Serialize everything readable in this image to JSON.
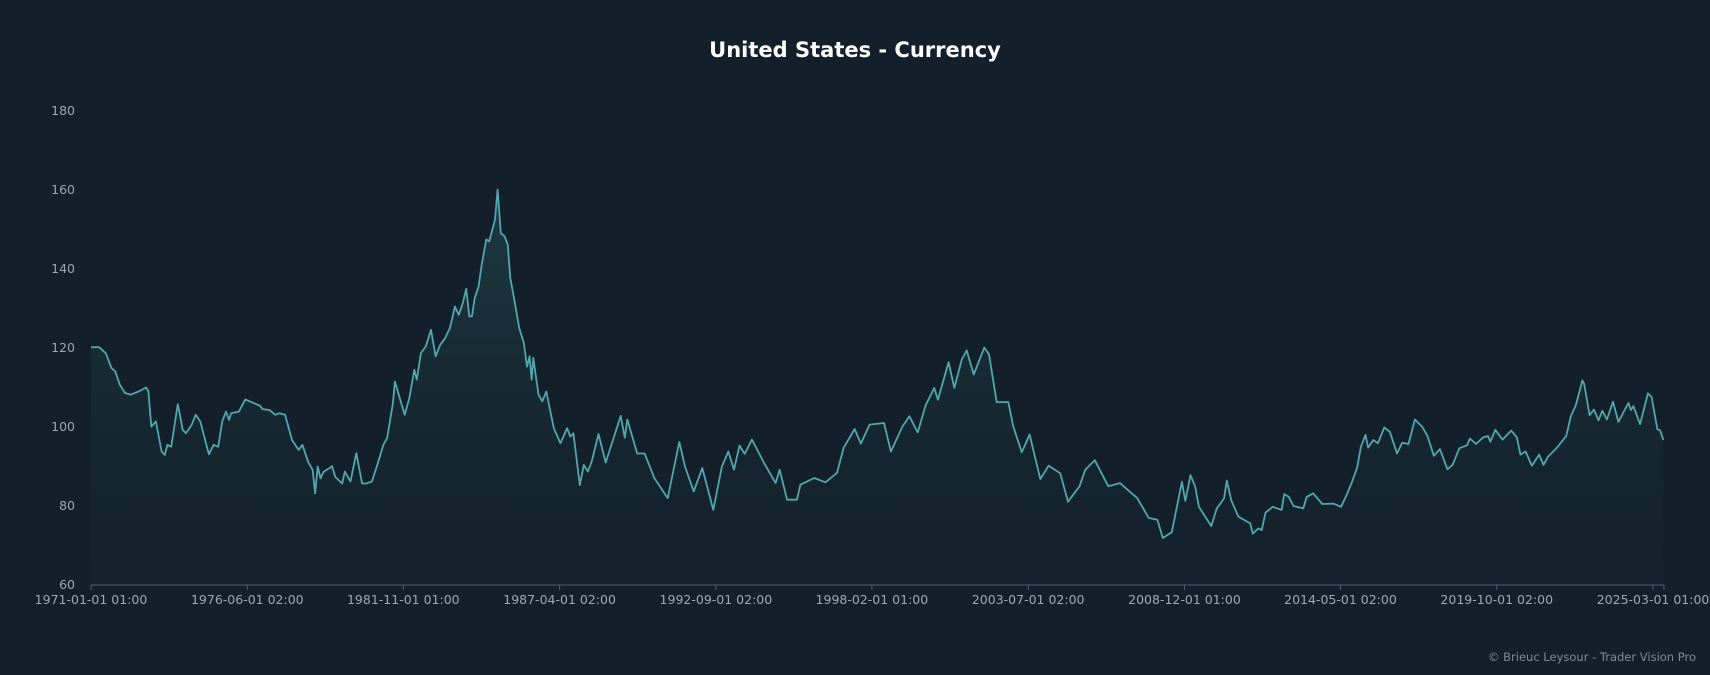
{
  "chart_data": {
    "type": "area",
    "title": "United States - Currency",
    "xlabel": "",
    "ylabel": "",
    "ylim": [
      60,
      180
    ],
    "xlim": [
      1971.0,
      2025.55
    ],
    "grid": false,
    "legend": "none",
    "line_color": "#52a7ad",
    "background": "#13202b",
    "yticks": [
      60,
      80,
      100,
      120,
      140,
      160,
      180
    ],
    "xticks": [
      {
        "x": 1971.0,
        "label": "1971-01-01 01:00"
      },
      {
        "x": 1976.42,
        "label": "1976-06-01 02:00"
      },
      {
        "x": 1981.83,
        "label": "1981-11-01 01:00"
      },
      {
        "x": 1987.25,
        "label": "1987-04-01 02:00"
      },
      {
        "x": 1992.67,
        "label": "1992-09-01 02:00"
      },
      {
        "x": 1998.08,
        "label": "1998-02-01 01:00"
      },
      {
        "x": 2003.5,
        "label": "2003-07-01 02:00"
      },
      {
        "x": 2008.92,
        "label": "2008-12-01 01:00"
      },
      {
        "x": 2014.33,
        "label": "2014-05-01 02:00"
      },
      {
        "x": 2019.75,
        "label": "2019-10-01 02:00"
      },
      {
        "x": 2025.17,
        "label": "2025-03-01 01:00"
      }
    ],
    "series": [
      {
        "name": "United States - Currency",
        "points": [
          [
            1971.0,
            120.2
          ],
          [
            1971.28,
            120.2
          ],
          [
            1971.51,
            118.7
          ],
          [
            1971.71,
            114.9
          ],
          [
            1971.84,
            114.1
          ],
          [
            1972.0,
            110.7
          ],
          [
            1972.18,
            108.6
          ],
          [
            1972.38,
            108.2
          ],
          [
            1972.65,
            109
          ],
          [
            1972.91,
            110
          ],
          [
            1972.99,
            109
          ],
          [
            1973.09,
            100.1
          ],
          [
            1973.25,
            101.4
          ],
          [
            1973.45,
            93.8
          ],
          [
            1973.56,
            92.9
          ],
          [
            1973.65,
            95.5
          ],
          [
            1973.78,
            95
          ],
          [
            1974.01,
            105.8
          ],
          [
            1974.18,
            99.3
          ],
          [
            1974.29,
            98.4
          ],
          [
            1974.49,
            100.5
          ],
          [
            1974.63,
            103.1
          ],
          [
            1974.79,
            101.4
          ],
          [
            1975.09,
            93.1
          ],
          [
            1975.25,
            95.5
          ],
          [
            1975.41,
            95
          ],
          [
            1975.55,
            101.4
          ],
          [
            1975.68,
            103.9
          ],
          [
            1975.79,
            101.8
          ],
          [
            1975.86,
            103.5
          ],
          [
            1976.13,
            103.9
          ],
          [
            1976.35,
            107
          ],
          [
            1976.66,
            106
          ],
          [
            1976.86,
            105.4
          ],
          [
            1976.95,
            104.5
          ],
          [
            1977.19,
            104.3
          ],
          [
            1977.39,
            103.1
          ],
          [
            1977.53,
            103.5
          ],
          [
            1977.73,
            103.1
          ],
          [
            1977.97,
            96.7
          ],
          [
            1978.2,
            94.2
          ],
          [
            1978.33,
            95.5
          ],
          [
            1978.53,
            91.2
          ],
          [
            1978.69,
            89.1
          ],
          [
            1978.77,
            83.2
          ],
          [
            1978.86,
            90
          ],
          [
            1978.96,
            87
          ],
          [
            1979.07,
            88.7
          ],
          [
            1979.27,
            89.6
          ],
          [
            1979.36,
            90.1
          ],
          [
            1979.47,
            87.4
          ],
          [
            1979.71,
            85.7
          ],
          [
            1979.8,
            88.7
          ],
          [
            1980.0,
            86.2
          ],
          [
            1980.2,
            93.4
          ],
          [
            1980.4,
            85.7
          ],
          [
            1980.54,
            85.7
          ],
          [
            1980.74,
            86.2
          ],
          [
            1980.91,
            90
          ],
          [
            1981.14,
            95.5
          ],
          [
            1981.27,
            97.2
          ],
          [
            1981.47,
            106
          ],
          [
            1981.54,
            111.5
          ],
          [
            1981.74,
            106.5
          ],
          [
            1981.88,
            103.1
          ],
          [
            1982.04,
            107.3
          ],
          [
            1982.21,
            114.5
          ],
          [
            1982.3,
            112
          ],
          [
            1982.44,
            118.7
          ],
          [
            1982.61,
            120.4
          ],
          [
            1982.79,
            124.6
          ],
          [
            1982.95,
            117.9
          ],
          [
            1983.11,
            120.8
          ],
          [
            1983.28,
            122.5
          ],
          [
            1983.45,
            125.1
          ],
          [
            1983.62,
            130.5
          ],
          [
            1983.75,
            128.4
          ],
          [
            1983.88,
            131
          ],
          [
            1984.01,
            135
          ],
          [
            1984.12,
            128
          ],
          [
            1984.21,
            128
          ],
          [
            1984.31,
            132.7
          ],
          [
            1984.44,
            135.6
          ],
          [
            1984.55,
            141.1
          ],
          [
            1984.71,
            147.5
          ],
          [
            1984.81,
            147
          ],
          [
            1985.01,
            152.5
          ],
          [
            1985.1,
            160.1
          ],
          [
            1985.21,
            149.1
          ],
          [
            1985.34,
            148.3
          ],
          [
            1985.45,
            146.2
          ],
          [
            1985.54,
            137.7
          ],
          [
            1985.68,
            132.2
          ],
          [
            1985.85,
            125.1
          ],
          [
            1986.01,
            121.3
          ],
          [
            1986.12,
            115.3
          ],
          [
            1986.21,
            117.9
          ],
          [
            1986.28,
            112
          ],
          [
            1986.34,
            117.5
          ],
          [
            1986.52,
            108.2
          ],
          [
            1986.65,
            106.5
          ],
          [
            1986.79,
            109
          ],
          [
            1987.05,
            99.7
          ],
          [
            1987.28,
            95.9
          ],
          [
            1987.51,
            99.7
          ],
          [
            1987.62,
            97.6
          ],
          [
            1987.73,
            98.4
          ],
          [
            1987.95,
            85.3
          ],
          [
            1988.09,
            90.4
          ],
          [
            1988.23,
            88.7
          ],
          [
            1988.36,
            91.2
          ],
          [
            1988.6,
            98.2
          ],
          [
            1988.85,
            91
          ],
          [
            1989.14,
            97.6
          ],
          [
            1989.37,
            102.8
          ],
          [
            1989.51,
            97.3
          ],
          [
            1989.6,
            101.9
          ],
          [
            1989.94,
            93.3
          ],
          [
            1990.2,
            93.3
          ],
          [
            1990.54,
            87
          ],
          [
            1991.0,
            82
          ],
          [
            1991.4,
            96.2
          ],
          [
            1991.6,
            90
          ],
          [
            1991.9,
            83.7
          ],
          [
            1992.2,
            89.6
          ],
          [
            1992.58,
            79
          ],
          [
            1992.88,
            90
          ],
          [
            1993.1,
            93.8
          ],
          [
            1993.3,
            89.2
          ],
          [
            1993.49,
            95.3
          ],
          [
            1993.67,
            93.2
          ],
          [
            1993.92,
            96.8
          ],
          [
            1994.34,
            90.9
          ],
          [
            1994.74,
            85.8
          ],
          [
            1994.88,
            89.2
          ],
          [
            1995.14,
            81.6
          ],
          [
            1995.48,
            81.6
          ],
          [
            1995.6,
            85.4
          ],
          [
            1996.08,
            87.1
          ],
          [
            1996.47,
            86
          ],
          [
            1996.87,
            88.4
          ],
          [
            1997.1,
            94.7
          ],
          [
            1997.28,
            97
          ],
          [
            1997.48,
            99.5
          ],
          [
            1997.7,
            95.8
          ],
          [
            1998.0,
            100.6
          ],
          [
            1998.5,
            101
          ],
          [
            1998.74,
            93.8
          ],
          [
            1999.14,
            100.1
          ],
          [
            1999.38,
            102.7
          ],
          [
            1999.67,
            98.6
          ],
          [
            1999.94,
            105.4
          ],
          [
            2000.24,
            109.9
          ],
          [
            2000.37,
            106.9
          ],
          [
            2000.74,
            116.4
          ],
          [
            2000.94,
            109.9
          ],
          [
            2001.2,
            117.1
          ],
          [
            2001.37,
            119.4
          ],
          [
            2001.61,
            113.3
          ],
          [
            2001.98,
            120.1
          ],
          [
            2002.14,
            118.4
          ],
          [
            2002.41,
            106.3
          ],
          [
            2002.81,
            106.3
          ],
          [
            2002.98,
            100.2
          ],
          [
            2003.28,
            93.6
          ],
          [
            2003.55,
            98.1
          ],
          [
            2003.92,
            86.8
          ],
          [
            2004.21,
            90.2
          ],
          [
            2004.61,
            88.3
          ],
          [
            2004.88,
            81.1
          ],
          [
            2005.28,
            85
          ],
          [
            2005.48,
            89.2
          ],
          [
            2005.81,
            91.6
          ],
          [
            2006.28,
            85
          ],
          [
            2006.68,
            85.8
          ],
          [
            2007.28,
            82
          ],
          [
            2007.68,
            77
          ],
          [
            2007.98,
            76.5
          ],
          [
            2008.17,
            71.9
          ],
          [
            2008.48,
            73.4
          ],
          [
            2008.83,
            86.1
          ],
          [
            2008.95,
            81.3
          ],
          [
            2009.13,
            87.8
          ],
          [
            2009.29,
            85
          ],
          [
            2009.42,
            79.8
          ],
          [
            2009.85,
            74.9
          ],
          [
            2010.04,
            79.4
          ],
          [
            2010.29,
            81.9
          ],
          [
            2010.39,
            86.4
          ],
          [
            2010.54,
            81.5
          ],
          [
            2010.79,
            77.3
          ],
          [
            2011.2,
            75.6
          ],
          [
            2011.29,
            73
          ],
          [
            2011.48,
            74.3
          ],
          [
            2011.6,
            73.9
          ],
          [
            2011.73,
            78.3
          ],
          [
            2011.98,
            79.8
          ],
          [
            2012.29,
            79
          ],
          [
            2012.38,
            83
          ],
          [
            2012.54,
            82.3
          ],
          [
            2012.7,
            80
          ],
          [
            2013.04,
            79.4
          ],
          [
            2013.16,
            82.3
          ],
          [
            2013.38,
            83.2
          ],
          [
            2013.7,
            80.5
          ],
          [
            2014.08,
            80.6
          ],
          [
            2014.35,
            79.8
          ],
          [
            2014.54,
            82.7
          ],
          [
            2014.73,
            86.1
          ],
          [
            2014.91,
            89.8
          ],
          [
            2015.04,
            95
          ],
          [
            2015.2,
            98
          ],
          [
            2015.29,
            94.8
          ],
          [
            2015.47,
            96.7
          ],
          [
            2015.63,
            95.9
          ],
          [
            2015.85,
            99.9
          ],
          [
            2016.04,
            98.8
          ],
          [
            2016.29,
            93.3
          ],
          [
            2016.47,
            96
          ],
          [
            2016.69,
            95.7
          ],
          [
            2016.91,
            101.9
          ],
          [
            2017.16,
            100.1
          ],
          [
            2017.35,
            97.7
          ],
          [
            2017.57,
            92.7
          ],
          [
            2017.78,
            94.4
          ],
          [
            2018.04,
            89.3
          ],
          [
            2018.22,
            90.4
          ],
          [
            2018.45,
            94.6
          ],
          [
            2018.72,
            95.4
          ],
          [
            2018.82,
            97.1
          ],
          [
            2019.03,
            95.7
          ],
          [
            2019.28,
            97.4
          ],
          [
            2019.45,
            97.7
          ],
          [
            2019.53,
            96.3
          ],
          [
            2019.7,
            99.3
          ],
          [
            2019.95,
            96.8
          ],
          [
            2020.25,
            99.1
          ],
          [
            2020.45,
            97.4
          ],
          [
            2020.57,
            93
          ],
          [
            2020.75,
            93.8
          ],
          [
            2020.97,
            90.2
          ],
          [
            2021.22,
            93
          ],
          [
            2021.37,
            90.4
          ],
          [
            2021.53,
            92.5
          ],
          [
            2021.82,
            94.6
          ],
          [
            2022.16,
            97.7
          ],
          [
            2022.32,
            102.8
          ],
          [
            2022.49,
            105.5
          ],
          [
            2022.72,
            111.8
          ],
          [
            2022.78,
            111
          ],
          [
            2022.97,
            103
          ],
          [
            2023.12,
            104.4
          ],
          [
            2023.28,
            101.7
          ],
          [
            2023.41,
            104.1
          ],
          [
            2023.57,
            101.9
          ],
          [
            2023.78,
            106.4
          ],
          [
            2023.97,
            101.3
          ],
          [
            2024.15,
            103.8
          ],
          [
            2024.32,
            106.1
          ],
          [
            2024.4,
            104.3
          ],
          [
            2024.49,
            105.3
          ],
          [
            2024.72,
            100.7
          ],
          [
            2024.99,
            108.5
          ],
          [
            2025.12,
            107.6
          ],
          [
            2025.32,
            99.4
          ],
          [
            2025.41,
            99.2
          ],
          [
            2025.53,
            96.7
          ]
        ]
      }
    ]
  },
  "footer": {
    "credit": "© Brieuc Leysour - Trader Vision Pro"
  }
}
